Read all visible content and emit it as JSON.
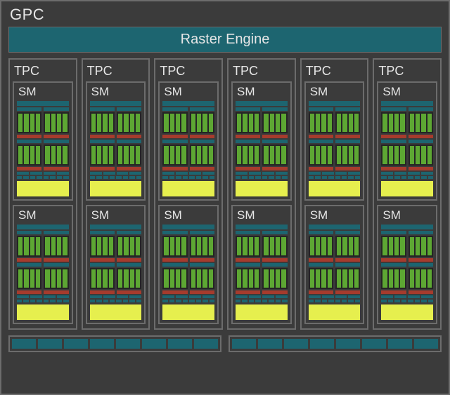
{
  "diagram": {
    "type": "block-diagram",
    "title": "GPC",
    "raster_label": "Raster Engine",
    "tpc_label": "TPC",
    "sm_label": "SM",
    "tpc_count": 6,
    "sm_per_tpc": 2,
    "colors": {
      "background": "#3b3b3b",
      "border": "#6c6c6c",
      "text": "#e6e6e6",
      "teal": "#1d6570",
      "core_green": "#5da733",
      "red": "#a63b2d",
      "yellow": "#e6ef4e",
      "core_bg": "#252525"
    },
    "typography": {
      "gpc_fontsize": 22,
      "raster_fontsize": 20,
      "tpc_fontsize": 18,
      "sm_fontsize": 17,
      "family": "Arial"
    },
    "sm_internal": {
      "top_teal_bar_height": 7,
      "core_block_rows": 2,
      "cores_per_half": 4,
      "halves_per_row": 2,
      "core_row_height": 30,
      "red_bar_height": 5,
      "dash_segments_row1": 4,
      "dash_segments_row2": 8,
      "yellow_block_height": 22
    },
    "bottom_bar": {
      "halves": 2,
      "segments_per_half": 8,
      "segment_height": 14
    }
  }
}
